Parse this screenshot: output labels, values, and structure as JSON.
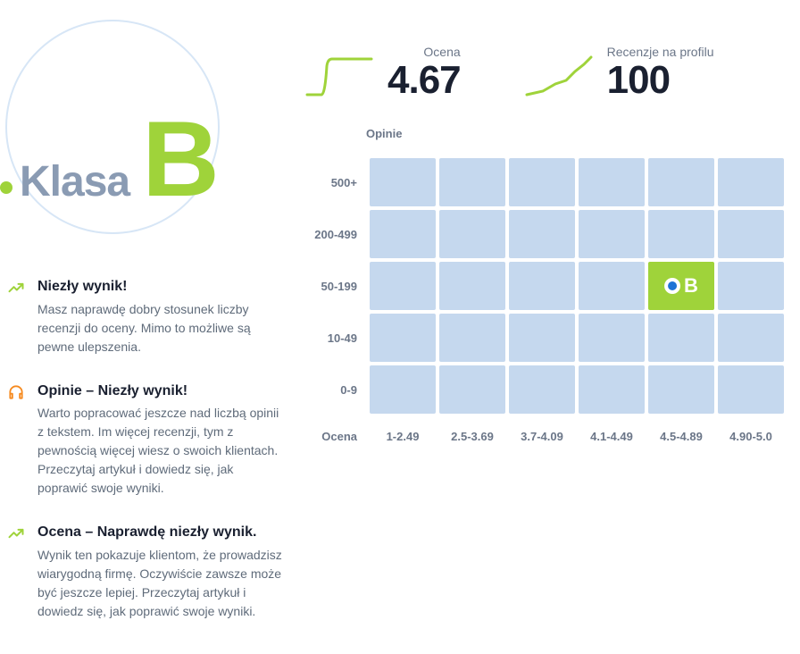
{
  "colors": {
    "accent_green": "#9fd33a",
    "accent_orange": "#f68a1f",
    "text_muted": "#8a9bb3",
    "text_dark": "#1a2030",
    "badge_ring": "#d7e6f6",
    "cell_default": "#c5d8ee",
    "spark_stroke": "#9fd33a",
    "marker_inner": "#1e73d6",
    "white": "#ffffff"
  },
  "class_badge": {
    "label": "Klasa",
    "letter": "B",
    "dot_color": "#9fd33a",
    "label_color": "#8a9bb3",
    "letter_color": "#9fd33a"
  },
  "tips": [
    {
      "icon": "trend-up-icon",
      "icon_color": "#9fd33a",
      "title": "Niezły wynik!",
      "text": "Masz naprawdę dobry stosunek liczby recenzji do oceny. Mimo to możliwe są pewne ulepszenia."
    },
    {
      "icon": "headphones-icon",
      "icon_color": "#f68a1f",
      "title": "Opinie – Niezły wynik!",
      "text": "Warto popracować jeszcze nad liczbą opinii z tekstem. Im więcej recenzji, tym z pewnością więcej wiesz o swoich klientach. Przeczytaj artykuł i dowiedz się, jak poprawić swoje wyniki."
    },
    {
      "icon": "trend-up-icon",
      "icon_color": "#9fd33a",
      "title": "Ocena – Naprawdę niezły wynik.",
      "text": "Wynik ten pokazuje klientom, że prowadzisz wiarygodną firmę. Oczywiście zawsze może być jeszcze lepiej. Przeczytaj artykuł i dowiedz się, jak poprawić swoje wyniki."
    }
  ],
  "metrics": {
    "rating": {
      "label": "Ocena",
      "value": "4.67",
      "spark_shape": "step"
    },
    "reviews": {
      "label": "Recenzje na profilu",
      "value": "100",
      "spark_shape": "rise"
    }
  },
  "heatmap": {
    "y_title": "Opinie",
    "x_title": "Ocena",
    "y_labels": [
      "500+",
      "200-499",
      "50-199",
      "10-49",
      "0-9"
    ],
    "x_labels": [
      "1-2.49",
      "2.5-3.69",
      "3.7-4.09",
      "4.1-4.49",
      "4.5-4.89",
      "4.90-5.0"
    ],
    "cell_color": "#c5d8ee",
    "highlight": {
      "row": 2,
      "col": 4,
      "bg_color": "#9fd33a",
      "marker_inner": "#1e73d6",
      "letter": "B"
    }
  }
}
